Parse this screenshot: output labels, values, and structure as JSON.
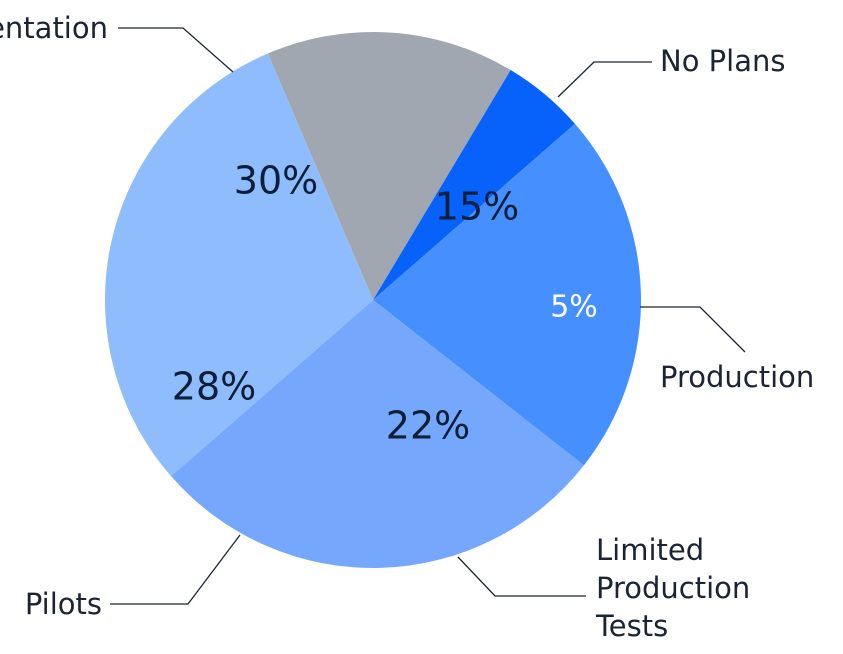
{
  "chart_data": {
    "type": "pie",
    "title": "",
    "legend": "none",
    "slices": [
      {
        "label": "No Plans",
        "value": 15,
        "pct_text": "15%",
        "color": "#a1a7b0"
      },
      {
        "label": "Production",
        "value": 5,
        "pct_text": "5%",
        "color": "#0761fb"
      },
      {
        "label_lines": [
          "Limited",
          "Production",
          "Tests"
        ],
        "value": 22,
        "pct_text": "22%",
        "color": "#4590fe"
      },
      {
        "label": "Pilots",
        "value": 28,
        "pct_text": "28%",
        "color": "#75a8fd"
      },
      {
        "label": "Experimentation",
        "value": 30,
        "pct_text": "30%",
        "color": "#8ebcfd"
      }
    ]
  }
}
